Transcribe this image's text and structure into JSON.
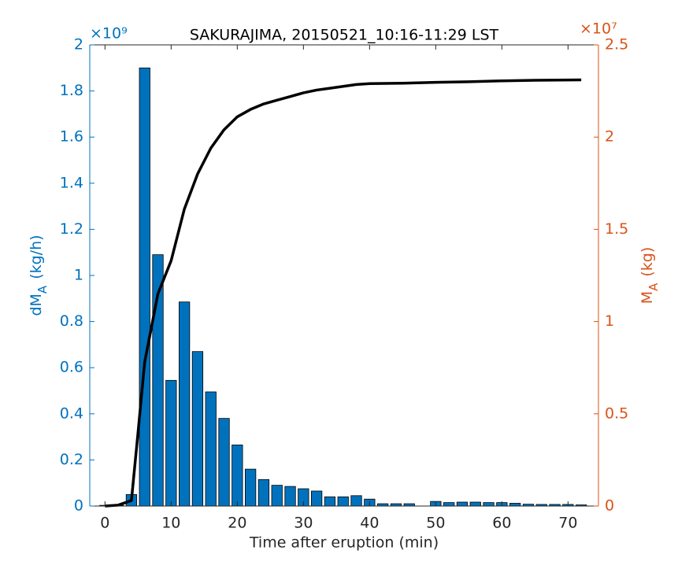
{
  "chart_data": {
    "type": "bar",
    "title": "SAKURAJIMA, 20150521_10:16-11:29 LST",
    "xlabel": "Time after eruption (min)",
    "ylabel": {
      "main": "dM",
      "sub": "A",
      "unit": "(kg/h)",
      "exponent": "×10⁹",
      "color": "#0072bd"
    },
    "y2label": {
      "main": "M",
      "sub": "A",
      "unit": "(kg)",
      "exponent": "×10⁷",
      "color": "#d95319"
    },
    "xlim": [
      -2.3,
      74.6
    ],
    "xticks": [
      0,
      10,
      20,
      30,
      40,
      50,
      60,
      70
    ],
    "ylim": [
      0,
      2
    ],
    "yticks": [
      0,
      0.2,
      0.4,
      0.6,
      0.8,
      1,
      1.2,
      1.4,
      1.6,
      1.8,
      2
    ],
    "y2lim": [
      0,
      2.5
    ],
    "y2ticks": [
      0,
      0.5,
      1,
      1.5,
      2,
      2.5
    ],
    "series": [
      {
        "type": "bar",
        "color": "#0072bd",
        "x": [
          0,
          2,
          4,
          6,
          8,
          10,
          12,
          14,
          16,
          18,
          20,
          22,
          24,
          26,
          28,
          30,
          32,
          34,
          36,
          38,
          40,
          42,
          44,
          46,
          48,
          50,
          52,
          54,
          56,
          58,
          60,
          62,
          64,
          66,
          68,
          70,
          72
        ],
        "values": [
          0.003,
          0.003,
          0.05,
          1.9,
          1.09,
          0.545,
          0.885,
          0.67,
          0.495,
          0.38,
          0.265,
          0.16,
          0.115,
          0.09,
          0.085,
          0.075,
          0.065,
          0.04,
          0.04,
          0.045,
          0.03,
          0.01,
          0.01,
          0.01,
          0,
          0.02,
          0.015,
          0.017,
          0.017,
          0.015,
          0.015,
          0.012,
          0.008,
          0.007,
          0.007,
          0.007,
          0.005
        ]
      },
      {
        "type": "line",
        "axis": "y2",
        "color": "#000000",
        "x": [
          0,
          2,
          4,
          5,
          6,
          8,
          10,
          12,
          14,
          16,
          18,
          20,
          22,
          24,
          26,
          28,
          30,
          32,
          34,
          36,
          38,
          40,
          45,
          50,
          55,
          60,
          65,
          72
        ],
        "values": [
          0,
          0.005,
          0.03,
          0.4,
          0.78,
          1.15,
          1.33,
          1.61,
          1.8,
          1.94,
          2.04,
          2.11,
          2.15,
          2.18,
          2.2,
          2.22,
          2.24,
          2.255,
          2.265,
          2.275,
          2.285,
          2.29,
          2.292,
          2.297,
          2.3,
          2.305,
          2.308,
          2.31
        ]
      }
    ]
  }
}
